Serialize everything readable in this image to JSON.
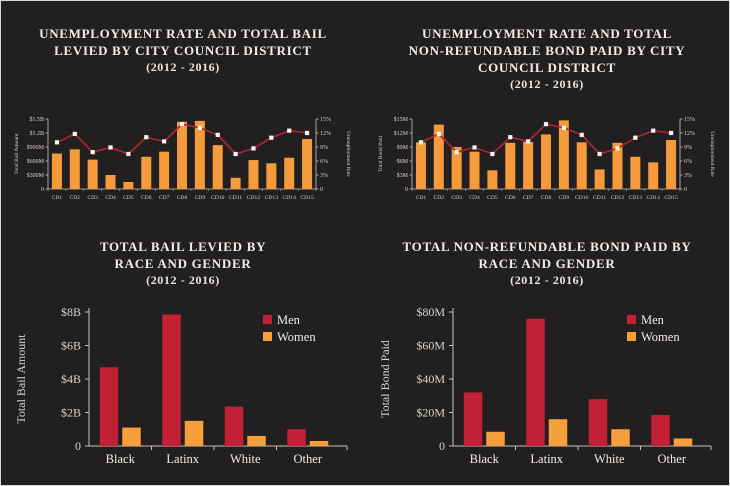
{
  "page": {
    "background": "#211f1f",
    "frame_color": "#d6d6d6"
  },
  "colors": {
    "bar_orange": "#F59B3C",
    "men_red": "#C22035",
    "women_orange": "#F5A03C",
    "line_red": "#AB2433",
    "marker_white": "#F7F5F0",
    "title_text": "#F1EDE6",
    "axis_text": "#D9D5CD",
    "axis_line": "#C9C5BD"
  },
  "legend": {
    "men_label": "Men",
    "women_label": "Women"
  },
  "chart_data": [
    {
      "type": "combo",
      "title_lines": [
        "UNEMPLOYMENT RATE AND TOTAL BAIL",
        "LEVIED BY CITY COUNCIL DISTRICT"
      ],
      "subtitle": "(2012 - 2016)",
      "categories": [
        "CD1",
        "CD2",
        "CD3",
        "CD4",
        "CD5",
        "CD6",
        "CD7",
        "CD8",
        "CD9",
        "CD10",
        "CD11",
        "CD12",
        "CD13",
        "CD14",
        "CD15"
      ],
      "bars": {
        "name": "Total Bail Amount",
        "unit": "USD",
        "values": [
          0.76,
          0.85,
          0.63,
          0.3,
          0.15,
          0.69,
          0.8,
          1.44,
          1.46,
          0.94,
          0.24,
          0.62,
          0.55,
          0.67,
          1.07
        ],
        "value_unit": "billions",
        "axis_ticks": [
          "$1.5B",
          "$1.2B",
          "$900M",
          "$600M",
          "$300M",
          "0"
        ],
        "ymax": 1.5
      },
      "line": {
        "name": "Unemployment Rate",
        "unit": "percent",
        "values": [
          10.0,
          11.8,
          7.9,
          8.9,
          7.5,
          11.1,
          10.2,
          13.9,
          13.1,
          11.6,
          7.5,
          8.7,
          11.0,
          12.5,
          12.0
        ],
        "axis_ticks": [
          "15%",
          "12%",
          "9%",
          "6%",
          "3%",
          "0"
        ],
        "ymax": 15
      },
      "ylabel_left": "Total Bail Amount",
      "ylabel_right": "Unemployment Rate"
    },
    {
      "type": "combo",
      "title_lines": [
        "UNEMPLOYMENT RATE AND TOTAL",
        "NON-REFUNDABLE BOND PAID BY CITY",
        "COUNCIL DISTRICT"
      ],
      "subtitle": "(2012 - 2016)",
      "categories": [
        "CD1",
        "CD2",
        "CD3",
        "CD4",
        "CD5",
        "CD6",
        "CD7",
        "CD8",
        "CD9",
        "CD10",
        "CD11",
        "CD12",
        "CD13",
        "CD14",
        "CD15"
      ],
      "bars": {
        "name": "Total Bond Paid",
        "unit": "USD",
        "values": [
          10.0,
          13.8,
          9.0,
          8.0,
          4.0,
          9.9,
          10.1,
          11.7,
          14.7,
          10.0,
          4.2,
          9.9,
          6.9,
          5.7,
          10.5
        ],
        "value_unit": "millions",
        "axis_ticks": [
          "$15M",
          "$12M",
          "$9M",
          "$6M",
          "$3M",
          "0"
        ],
        "ymax": 15
      },
      "line": {
        "name": "Unemployment Rate",
        "unit": "percent",
        "values": [
          10.0,
          11.8,
          7.9,
          8.9,
          7.5,
          11.1,
          10.2,
          13.9,
          13.1,
          11.6,
          7.5,
          8.7,
          11.0,
          12.5,
          12.0
        ],
        "axis_ticks": [
          "15%",
          "12%",
          "9%",
          "6%",
          "3%",
          "0"
        ],
        "ymax": 15
      },
      "ylabel_left": "Total Bond Paid",
      "ylabel_right": "Unemployment Rate"
    },
    {
      "type": "grouped_bar",
      "title_lines": [
        "TOTAL BAIL LEVIED BY",
        "RACE AND GENDER"
      ],
      "subtitle": "(2012 - 2016)",
      "categories": [
        "Black",
        "Latinx",
        "White",
        "Other"
      ],
      "series": [
        {
          "name": "Men",
          "values": [
            4.7,
            7.85,
            2.35,
            1.0
          ]
        },
        {
          "name": "Women",
          "values": [
            1.1,
            1.5,
            0.6,
            0.3
          ]
        }
      ],
      "value_unit": "billions USD",
      "axis_ticks": [
        "$8B",
        "$6B",
        "$4B",
        "$2B",
        "0"
      ],
      "ymax": 8,
      "ylabel": "Total Bail Amount",
      "legend_position": "upper right"
    },
    {
      "type": "grouped_bar",
      "title_lines": [
        "TOTAL NON-REFUNDABLE BOND PAID BY",
        "RACE AND GENDER"
      ],
      "subtitle": "(2012 - 2016)",
      "categories": [
        "Black",
        "Latinx",
        "White",
        "Other"
      ],
      "series": [
        {
          "name": "Men",
          "values": [
            32,
            76,
            28,
            18.5
          ]
        },
        {
          "name": "Women",
          "values": [
            8.5,
            16,
            10,
            4.5
          ]
        }
      ],
      "value_unit": "millions USD",
      "axis_ticks": [
        "$80M",
        "$60M",
        "$40M",
        "$20M",
        "0"
      ],
      "ymax": 80,
      "ylabel": "Total Bond Paid",
      "legend_position": "upper right"
    }
  ]
}
